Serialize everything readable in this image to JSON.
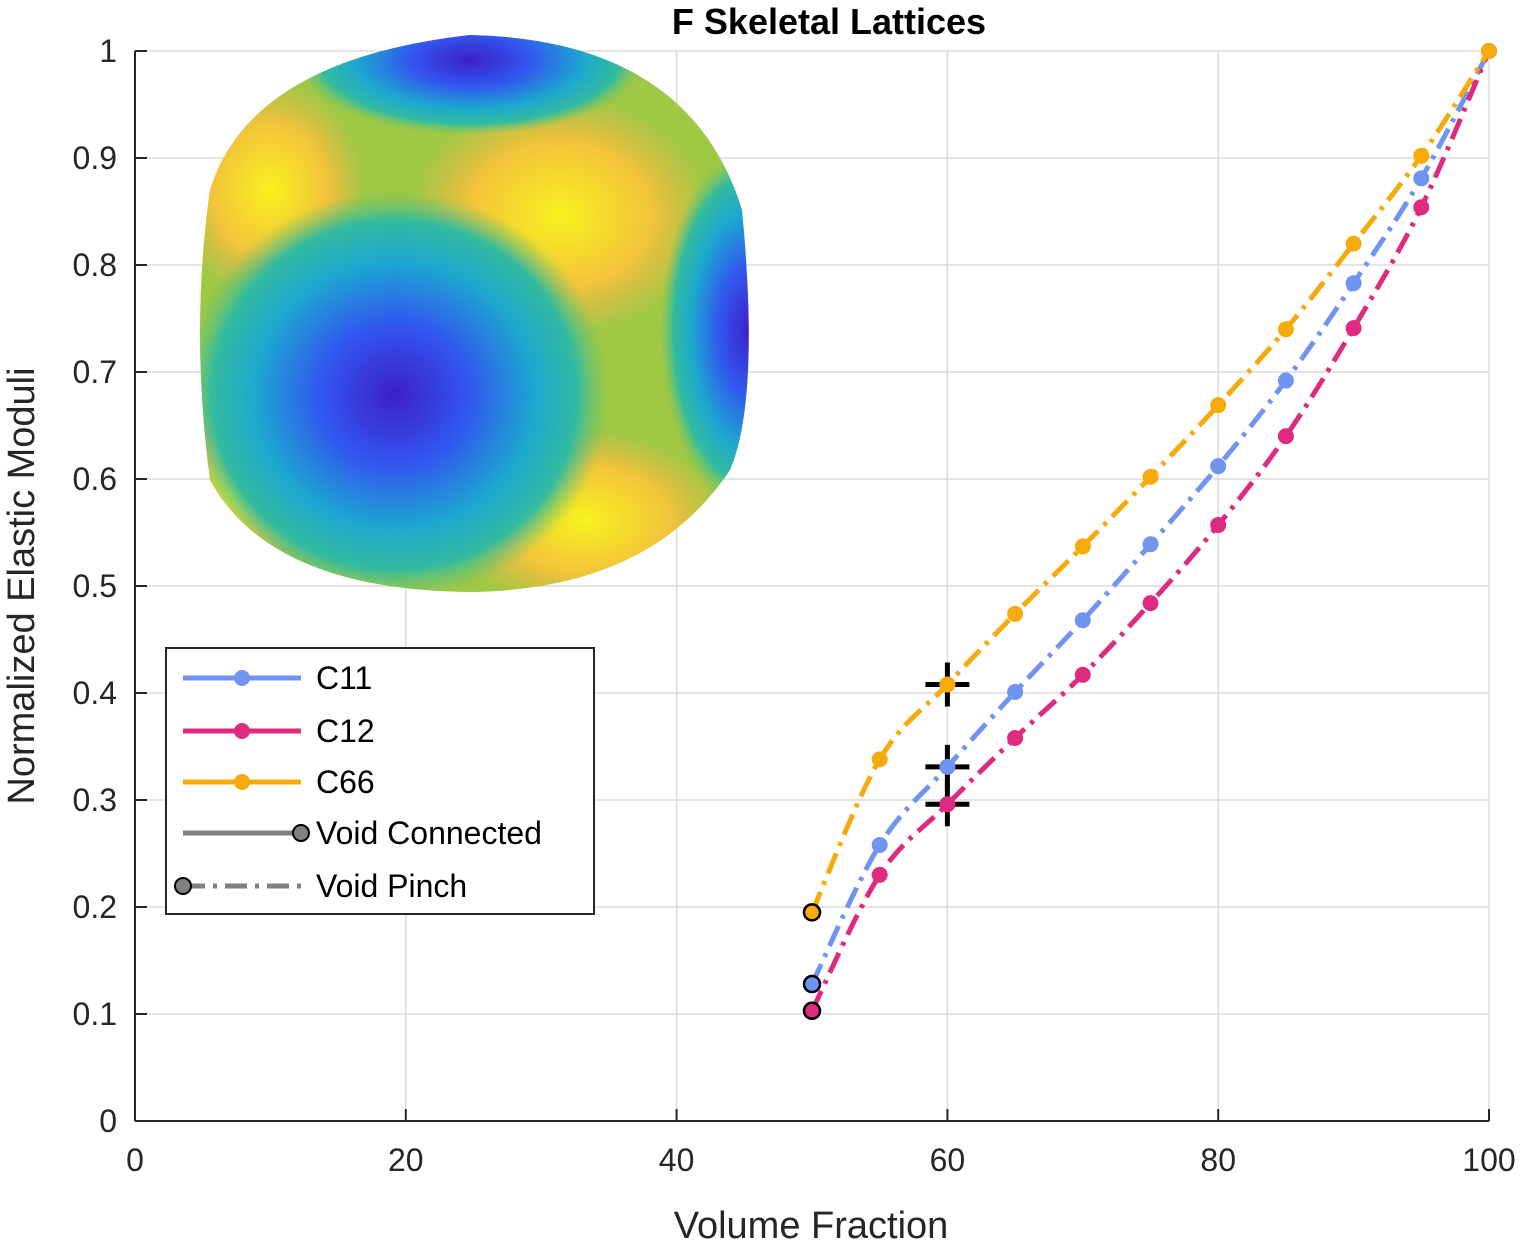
{
  "chart_data": {
    "type": "line",
    "title": "F Skeletal Lattices",
    "xlabel": "Volume Fraction",
    "ylabel": "Normalized Elastic Moduli",
    "xlim": [
      0,
      100
    ],
    "ylim": [
      0,
      1
    ],
    "xticks": [
      0,
      20,
      40,
      60,
      80,
      100
    ],
    "yticks": [
      0,
      0.1,
      0.2,
      0.3,
      0.4,
      0.5,
      0.6,
      0.7,
      0.8,
      0.9,
      1
    ],
    "xtick_labels": [
      "0",
      "20",
      "40",
      "60",
      "80",
      "100"
    ],
    "ytick_labels": [
      "0",
      "0.1",
      "0.2",
      "0.3",
      "0.4",
      "0.5",
      "0.6",
      "0.7",
      "0.8",
      "0.9",
      "1"
    ],
    "grid": true,
    "legend_position": "left",
    "x": [
      50,
      55,
      60,
      65,
      70,
      75,
      80,
      85,
      90,
      95,
      100
    ],
    "series": [
      {
        "name": "C11",
        "color": "#6f95f0",
        "values": [
          0.128,
          0.258,
          0.331,
          0.401,
          0.468,
          0.539,
          0.612,
          0.692,
          0.783,
          0.881,
          1.0
        ]
      },
      {
        "name": "C12",
        "color": "#de2b80",
        "values": [
          0.103,
          0.23,
          0.296,
          0.358,
          0.417,
          0.484,
          0.557,
          0.64,
          0.741,
          0.854,
          1.0
        ]
      },
      {
        "name": "C66",
        "color": "#f7aa0b",
        "values": [
          0.195,
          0.338,
          0.408,
          0.474,
          0.537,
          0.602,
          0.669,
          0.74,
          0.82,
          0.902,
          1.0
        ]
      }
    ],
    "style_legend": [
      {
        "name": "Void Connected",
        "color": "#808080",
        "line": "solid"
      },
      {
        "name": "Void Pinch",
        "color": "#808080",
        "line": "dashed"
      }
    ],
    "transition_x": 60,
    "inset": "cubic-symmetry elastic modulus surface"
  }
}
